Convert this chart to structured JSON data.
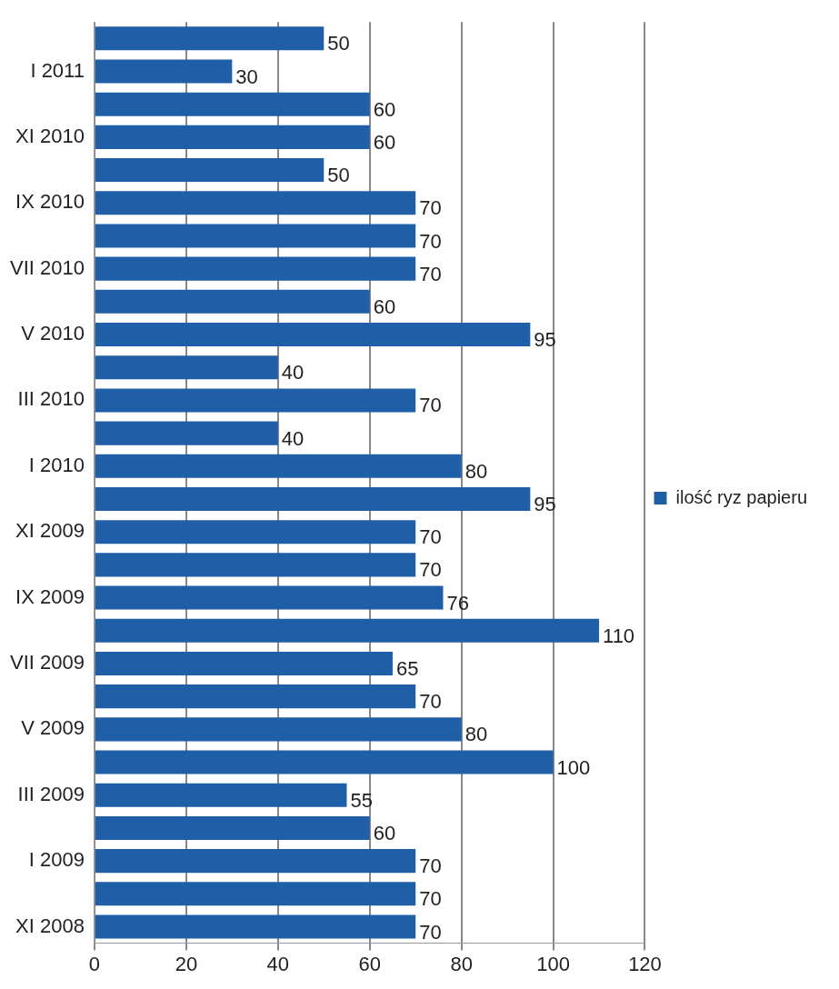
{
  "chart_data": {
    "type": "bar",
    "orientation": "horizontal",
    "categories": [
      null,
      "I 2011",
      null,
      "XI 2010",
      null,
      "IX 2010",
      null,
      "VII 2010",
      null,
      "V 2010",
      null,
      "III 2010",
      null,
      "I 2010",
      null,
      "XI 2009",
      null,
      "IX 2009",
      null,
      "VII 2009",
      null,
      "V 2009",
      null,
      "III 2009",
      null,
      "I 2009",
      null,
      "XI 2008"
    ],
    "series": [
      {
        "name": "ilość ryz papieru",
        "color": "#1f5fa8",
        "values": [
          50,
          30,
          60,
          60,
          50,
          70,
          70,
          70,
          60,
          95,
          40,
          70,
          40,
          80,
          95,
          70,
          70,
          76,
          110,
          65,
          70,
          80,
          100,
          55,
          60,
          70,
          70,
          70
        ]
      }
    ],
    "xlim": [
      0,
      120
    ],
    "xticks": [
      0,
      20,
      40,
      60,
      80,
      100,
      120
    ],
    "grid": "x",
    "legend": "right",
    "data_labels": true
  }
}
